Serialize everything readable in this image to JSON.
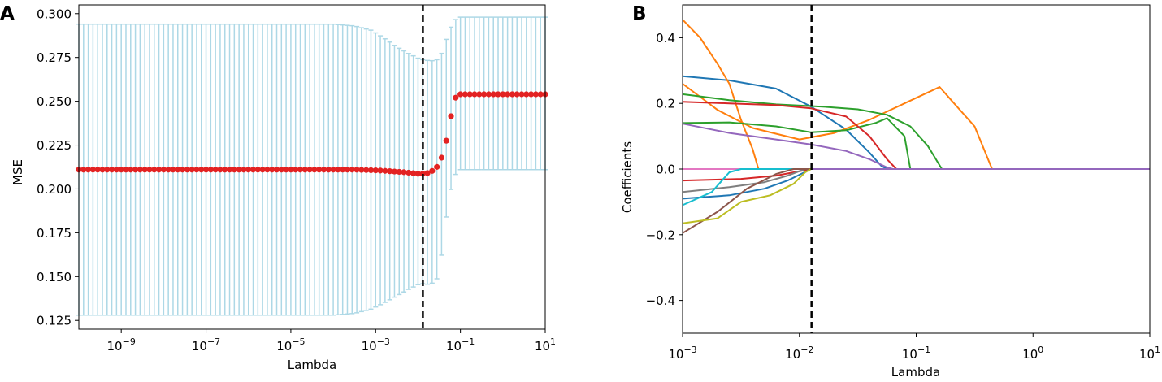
{
  "chart_data": [
    {
      "panel": "A",
      "type": "scatter",
      "xscale": "log",
      "xlabel": "Lambda",
      "ylabel": "MSE",
      "xlim": [
        1e-10,
        10
      ],
      "ylim": [
        0.12,
        0.305
      ],
      "xticks": [
        {
          "base": "10",
          "exp": "−9",
          "value": 1e-09
        },
        {
          "base": "10",
          "exp": "−7",
          "value": 1e-07
        },
        {
          "base": "10",
          "exp": "−5",
          "value": 1e-05
        },
        {
          "base": "10",
          "exp": "−3",
          "value": 0.001
        },
        {
          "base": "10",
          "exp": "−1",
          "value": 0.1
        },
        {
          "base": "10",
          "exp": "1",
          "value": 10
        }
      ],
      "yticks": [
        {
          "label": "0.125",
          "value": 0.125
        },
        {
          "label": "0.150",
          "value": 0.15
        },
        {
          "label": "0.175",
          "value": 0.175
        },
        {
          "label": "0.200",
          "value": 0.2
        },
        {
          "label": "0.225",
          "value": 0.225
        },
        {
          "label": "0.250",
          "value": 0.25
        },
        {
          "label": "0.275",
          "value": 0.275
        },
        {
          "label": "0.300",
          "value": 0.3
        }
      ],
      "vline_lambda": 0.013,
      "marker_color": "#e32222",
      "errorbar_color": "#add8e6",
      "lambda_log_range": [
        -10,
        1
      ],
      "n_points": 100,
      "mse_curve": [
        [
          -10,
          0.211
        ],
        [
          -3.5,
          0.211
        ],
        [
          -2.9,
          0.2105
        ],
        [
          -2.3,
          0.2095
        ],
        [
          -1.95,
          0.2085
        ],
        [
          -1.78,
          0.209
        ],
        [
          -1.6,
          0.211
        ],
        [
          -1.5,
          0.2145
        ],
        [
          -1.4,
          0.2205
        ],
        [
          -1.3,
          0.231
        ],
        [
          -1.2,
          0.2445
        ],
        [
          -1.1,
          0.253
        ],
        [
          -1.0,
          0.254
        ],
        [
          1,
          0.254
        ]
      ],
      "err_upper_curve": [
        [
          -10,
          0.294
        ],
        [
          -4.0,
          0.294
        ],
        [
          -3.5,
          0.293
        ],
        [
          -3.1,
          0.2905
        ],
        [
          -2.8,
          0.286
        ],
        [
          -2.5,
          0.281
        ],
        [
          -2.2,
          0.277
        ],
        [
          -1.95,
          0.274
        ],
        [
          -1.7,
          0.273
        ],
        [
          -1.5,
          0.274
        ],
        [
          -1.4,
          0.28
        ],
        [
          -1.3,
          0.288
        ],
        [
          -1.2,
          0.2935
        ],
        [
          -1.1,
          0.297
        ],
        [
          -1.0,
          0.298
        ],
        [
          1,
          0.298
        ]
      ],
      "err_lower_curve": [
        [
          -10,
          0.128
        ],
        [
          -4.0,
          0.128
        ],
        [
          -3.5,
          0.129
        ],
        [
          -3.1,
          0.1315
        ],
        [
          -2.8,
          0.135
        ],
        [
          -2.5,
          0.139
        ],
        [
          -2.2,
          0.143
        ],
        [
          -1.95,
          0.146
        ],
        [
          -1.7,
          0.1455
        ],
        [
          -1.5,
          0.15
        ],
        [
          -1.4,
          0.172
        ],
        [
          -1.3,
          0.19
        ],
        [
          -1.2,
          0.2025
        ],
        [
          -1.1,
          0.209
        ],
        [
          -1.0,
          0.211
        ],
        [
          1,
          0.211
        ]
      ]
    },
    {
      "panel": "B",
      "type": "line",
      "xscale": "log",
      "xlabel": "Lambda",
      "ylabel": "Coefficients",
      "xlim": [
        0.001,
        10
      ],
      "ylim": [
        -0.5,
        0.5
      ],
      "xticks": [
        {
          "base": "10",
          "exp": "−3",
          "value": 0.001
        },
        {
          "base": "10",
          "exp": "−2",
          "value": 0.01
        },
        {
          "base": "10",
          "exp": "−1",
          "value": 0.1
        },
        {
          "base": "10",
          "exp": "0",
          "value": 1
        },
        {
          "base": "10",
          "exp": "1",
          "value": 10
        }
      ],
      "yticks": [
        {
          "label": "−0.4",
          "value": -0.4
        },
        {
          "label": "−0.2",
          "value": -0.2
        },
        {
          "label": "0.0",
          "value": 0.0
        },
        {
          "label": "0.2",
          "value": 0.2
        },
        {
          "label": "0.4",
          "value": 0.4
        }
      ],
      "vline_lambda": 0.0127,
      "series": [
        {
          "name": "blue",
          "color": "#1f77b4",
          "points": [
            [
              -3,
              0.283
            ],
            [
              -2.6,
              0.27
            ],
            [
              -2.2,
              0.245
            ],
            [
              -1.9,
              0.19
            ],
            [
              -1.6,
              0.12
            ],
            [
              -1.4,
              0.05
            ],
            [
              -1.3,
              0.01
            ],
            [
              -1.25,
              0.0
            ],
            [
              1,
              0.0
            ]
          ]
        },
        {
          "name": "orange",
          "color": "#ff7f0e",
          "points": [
            [
              -3,
              0.455
            ],
            [
              -2.85,
              0.4
            ],
            [
              -2.7,
              0.32
            ],
            [
              -2.6,
              0.26
            ],
            [
              -2.5,
              0.15
            ],
            [
              -2.4,
              0.06
            ],
            [
              -2.35,
              0.0
            ],
            [
              -2.3,
              0.0
            ],
            [
              1,
              0.0
            ]
          ]
        },
        {
          "name": "orange-2",
          "color": "#ff7f0e",
          "points": [
            [
              -3,
              0.26
            ],
            [
              -2.7,
              0.18
            ],
            [
              -2.4,
              0.125
            ],
            [
              -2.0,
              0.09
            ],
            [
              -1.7,
              0.11
            ],
            [
              -1.4,
              0.15
            ],
            [
              -1.1,
              0.2
            ],
            [
              -0.8,
              0.25
            ],
            [
              -0.7,
              0.21
            ],
            [
              -0.5,
              0.13
            ],
            [
              -0.35,
              0.0
            ],
            [
              1,
              0.0
            ]
          ]
        },
        {
          "name": "green",
          "color": "#2ca02c",
          "points": [
            [
              -3,
              0.228
            ],
            [
              -2.6,
              0.21
            ],
            [
              -2.2,
              0.197
            ],
            [
              -1.8,
              0.19
            ],
            [
              -1.5,
              0.182
            ],
            [
              -1.25,
              0.165
            ],
            [
              -1.05,
              0.13
            ],
            [
              -0.9,
              0.07
            ],
            [
              -0.78,
              0.0
            ],
            [
              1,
              0.0
            ]
          ]
        },
        {
          "name": "green-2",
          "color": "#2ca02c",
          "points": [
            [
              -3,
              0.14
            ],
            [
              -2.6,
              0.142
            ],
            [
              -2.2,
              0.13
            ],
            [
              -1.9,
              0.112
            ],
            [
              -1.6,
              0.118
            ],
            [
              -1.35,
              0.14
            ],
            [
              -1.25,
              0.155
            ],
            [
              -1.1,
              0.1
            ],
            [
              -1.05,
              0.0
            ],
            [
              1,
              0.0
            ]
          ]
        },
        {
          "name": "red",
          "color": "#d62728",
          "points": [
            [
              -3,
              0.205
            ],
            [
              -2.6,
              0.2
            ],
            [
              -2.2,
              0.195
            ],
            [
              -1.9,
              0.185
            ],
            [
              -1.6,
              0.16
            ],
            [
              -1.4,
              0.1
            ],
            [
              -1.25,
              0.03
            ],
            [
              -1.17,
              0.0
            ],
            [
              1,
              0.0
            ]
          ]
        },
        {
          "name": "purple",
          "color": "#9467bd",
          "points": [
            [
              -3,
              0.138
            ],
            [
              -2.6,
              0.11
            ],
            [
              -2.2,
              0.09
            ],
            [
              -1.9,
              0.075
            ],
            [
              -1.6,
              0.055
            ],
            [
              -1.4,
              0.03
            ],
            [
              -1.25,
              0.005
            ],
            [
              -1.2,
              0.0
            ],
            [
              1,
              0.0
            ]
          ]
        },
        {
          "name": "pink",
          "color": "#e377c2",
          "points": [
            [
              -3,
              0.0
            ],
            [
              1,
              0.0
            ]
          ]
        },
        {
          "name": "red-neg",
          "color": "#d62728",
          "points": [
            [
              -3,
              -0.035
            ],
            [
              -2.5,
              -0.03
            ],
            [
              -2.2,
              -0.02
            ],
            [
              -1.9,
              0.0
            ],
            [
              1,
              0.0
            ]
          ]
        },
        {
          "name": "gray",
          "color": "#7f7f7f",
          "points": [
            [
              -3,
              -0.07
            ],
            [
              -2.6,
              -0.055
            ],
            [
              -2.3,
              -0.04
            ],
            [
              -2.1,
              -0.02
            ],
            [
              -1.95,
              0.0
            ],
            [
              1,
              0.0
            ]
          ]
        },
        {
          "name": "blue-neg",
          "color": "#1f77b4",
          "points": [
            [
              -3,
              -0.09
            ],
            [
              -2.6,
              -0.08
            ],
            [
              -2.3,
              -0.06
            ],
            [
              -2.1,
              -0.035
            ],
            [
              -1.9,
              0.0
            ],
            [
              1,
              0.0
            ]
          ]
        },
        {
          "name": "cyan",
          "color": "#17becf",
          "points": [
            [
              -3,
              -0.11
            ],
            [
              -2.75,
              -0.07
            ],
            [
              -2.6,
              -0.01
            ],
            [
              -2.5,
              0.0
            ],
            [
              1,
              0.0
            ]
          ]
        },
        {
          "name": "brown",
          "color": "#8c564b",
          "points": [
            [
              -3,
              -0.195
            ],
            [
              -2.7,
              -0.13
            ],
            [
              -2.45,
              -0.06
            ],
            [
              -2.2,
              -0.015
            ],
            [
              -2.05,
              0.0
            ],
            [
              1,
              0.0
            ]
          ]
        },
        {
          "name": "olive",
          "color": "#bcbd22",
          "points": [
            [
              -3,
              -0.165
            ],
            [
              -2.7,
              -0.15
            ],
            [
              -2.5,
              -0.1
            ],
            [
              -2.25,
              -0.08
            ],
            [
              -2.05,
              -0.045
            ],
            [
              -1.95,
              -0.01
            ],
            [
              -1.9,
              0.0
            ],
            [
              1,
              0.0
            ]
          ]
        },
        {
          "name": "purple-flat",
          "color": "#9467bd",
          "points": [
            [
              -1.9,
              0.0
            ],
            [
              1,
              0.0
            ]
          ]
        }
      ]
    }
  ]
}
